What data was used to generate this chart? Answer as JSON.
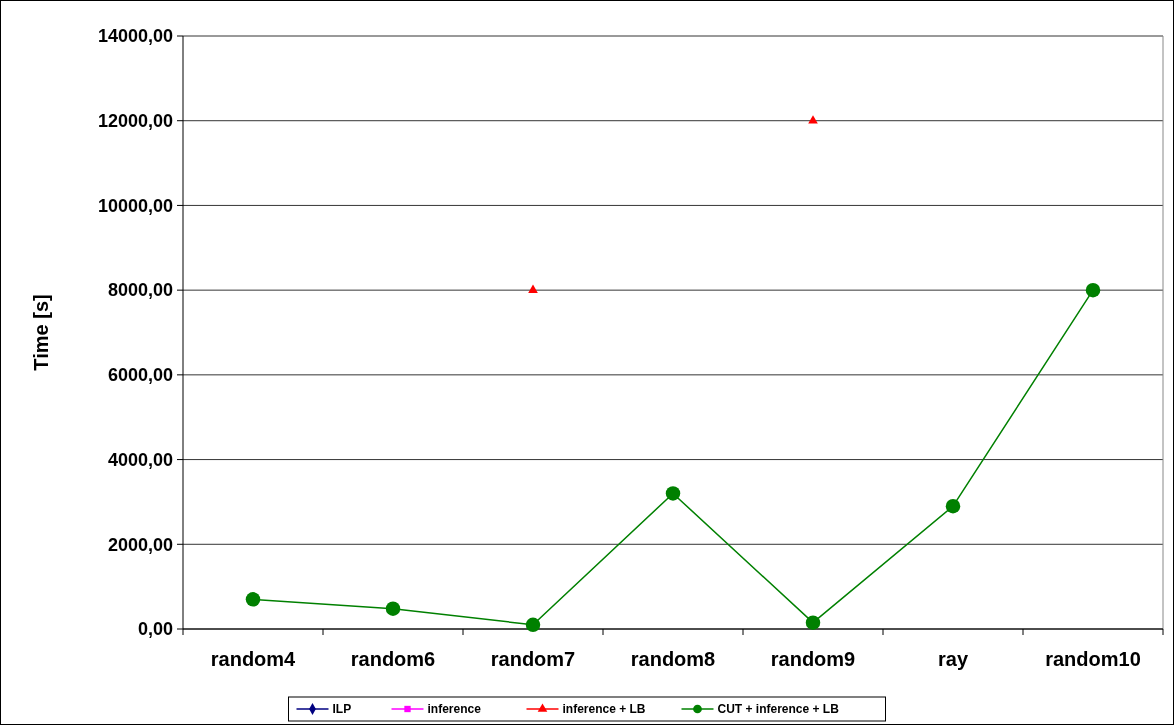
{
  "chart_data": {
    "type": "line",
    "ylabel": "Time [s]",
    "categories": [
      "random4",
      "random6",
      "random7",
      "random8",
      "random9",
      "ray",
      "random10"
    ],
    "series": [
      {
        "name": "ILP",
        "color": "#000080",
        "marker": "diamond",
        "values": [
          null,
          null,
          null,
          null,
          null,
          null,
          null
        ]
      },
      {
        "name": "inference",
        "color": "#ff00ff",
        "marker": "square",
        "values": [
          null,
          null,
          null,
          null,
          null,
          null,
          null
        ]
      },
      {
        "name": "inference + LB",
        "type": "scatter",
        "color": "#ff0000",
        "marker": "triangle",
        "values": [
          null,
          null,
          8000,
          null,
          12000,
          null,
          null
        ]
      },
      {
        "name": "CUT + inference + LB",
        "color": "#008000",
        "marker": "circle",
        "values": [
          700,
          480,
          100,
          3200,
          150,
          2900,
          8000
        ]
      }
    ],
    "ylim": [
      0,
      14000
    ],
    "yticks": [
      {
        "value": 0,
        "label": "0,00"
      },
      {
        "value": 2000,
        "label": "2000,00"
      },
      {
        "value": 4000,
        "label": "4000,00"
      },
      {
        "value": 6000,
        "label": "6000,00"
      },
      {
        "value": 8000,
        "label": "8000,00"
      },
      {
        "value": 10000,
        "label": "10000,00"
      },
      {
        "value": 12000,
        "label": "12000,00"
      },
      {
        "value": 14000,
        "label": "14000,00"
      }
    ],
    "grid": "y",
    "legend": "bottom"
  }
}
